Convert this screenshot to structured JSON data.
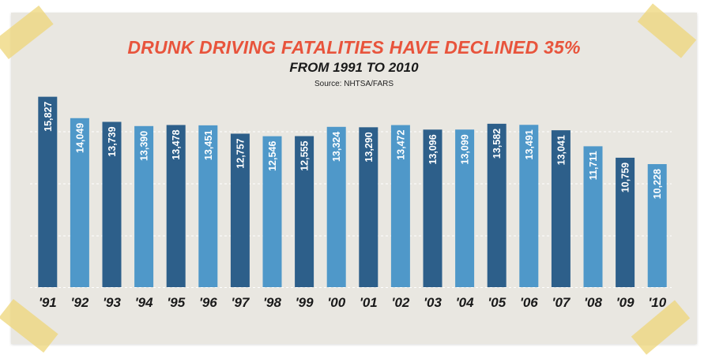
{
  "title": "DRUNK DRIVING FATALITIES HAVE DECLINED 35%",
  "subtitle": "FROM 1991 TO 2010",
  "source": "Source: NHTSA/FARS",
  "colors": {
    "title": "#e8543c",
    "bar_dark": "#2d5f8a",
    "bar_light": "#4f98c9",
    "background": "#e9e7e1",
    "tape": "#eed678"
  },
  "chart_data": {
    "type": "bar",
    "title": "DRUNK DRIVING FATALITIES HAVE DECLINED 35%",
    "subtitle": "FROM 1991 TO 2010",
    "xlabel": "",
    "ylabel": "",
    "categories": [
      "'91",
      "'92",
      "'93",
      "'94",
      "'95",
      "'96",
      "'97",
      "'98",
      "'99",
      "'00",
      "'01",
      "'02",
      "'03",
      "'04",
      "'05",
      "'06",
      "'07",
      "'08",
      "'09",
      "'10"
    ],
    "values": [
      15827,
      14049,
      13739,
      13390,
      13478,
      13451,
      12757,
      12546,
      12555,
      13324,
      13290,
      13472,
      13096,
      13099,
      13582,
      13491,
      13041,
      11711,
      10759,
      10228
    ],
    "labels": [
      "15,827",
      "14,049",
      "13,739",
      "13,390",
      "13,478",
      "13,451",
      "12,757",
      "12,546",
      "12,555",
      "13,324",
      "13,290",
      "13,472",
      "13,096",
      "13,099",
      "13,582",
      "13,491",
      "13,041",
      "11,711",
      "10,759",
      "10,228"
    ],
    "ylim": [
      0,
      16000
    ],
    "grid": true,
    "legend": "none"
  }
}
